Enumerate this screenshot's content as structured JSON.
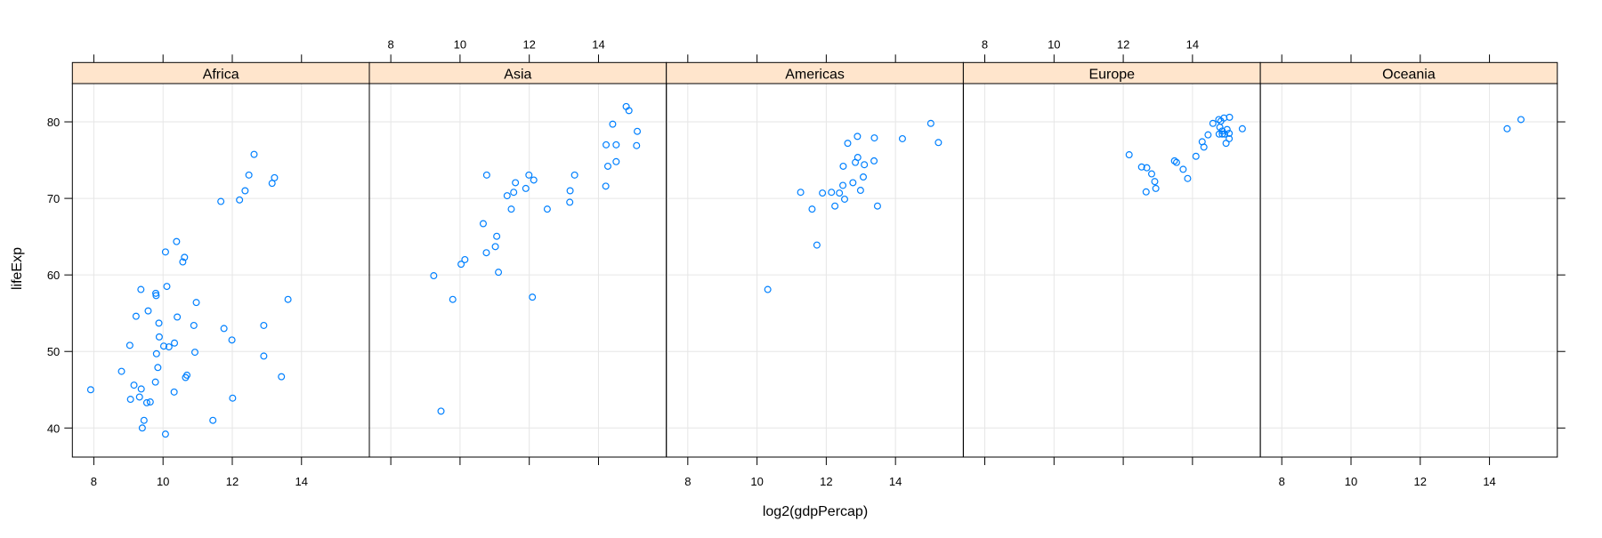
{
  "chart_data": {
    "type": "scatter",
    "layout": "1x5 conditioned panels (lattice xyplot)",
    "xlabel": "log2(gdpPercap)",
    "ylabel": "lifeExp",
    "xlim": [
      7.38,
      15.96
    ],
    "ylim": [
      36.2,
      85.0
    ],
    "x_ticks": [
      8,
      10,
      12,
      14
    ],
    "y_ticks": [
      40,
      50,
      60,
      70,
      80
    ],
    "grid": true,
    "colors": {
      "point": "#0080FF",
      "strip": "#FFE5CC",
      "grid": "#E6E6E6"
    },
    "marker": "open-circle",
    "panels": [
      {
        "name": "Africa",
        "points": [
          [
            12.63,
            75.75
          ],
          [
            12.48,
            73.05
          ],
          [
            13.22,
            72.7
          ],
          [
            13.15,
            71.97
          ],
          [
            12.37,
            71.0
          ],
          [
            11.67,
            69.6
          ],
          [
            12.21,
            69.8
          ],
          [
            10.39,
            64.36
          ],
          [
            10.07,
            63.0
          ],
          [
            10.62,
            62.3
          ],
          [
            10.57,
            61.7
          ],
          [
            10.11,
            58.5
          ],
          [
            9.36,
            58.1
          ],
          [
            9.79,
            57.6
          ],
          [
            9.8,
            57.3
          ],
          [
            10.96,
            56.4
          ],
          [
            13.61,
            56.8
          ],
          [
            9.57,
            55.3
          ],
          [
            9.22,
            54.6
          ],
          [
            10.41,
            54.5
          ],
          [
            9.88,
            53.7
          ],
          [
            10.89,
            53.4
          ],
          [
            11.76,
            53.0
          ],
          [
            12.91,
            53.4
          ],
          [
            9.89,
            51.9
          ],
          [
            11.99,
            51.5
          ],
          [
            9.04,
            50.8
          ],
          [
            10.02,
            50.7
          ],
          [
            10.17,
            50.6
          ],
          [
            10.33,
            51.1
          ],
          [
            10.92,
            49.9
          ],
          [
            9.81,
            49.7
          ],
          [
            12.91,
            49.4
          ],
          [
            8.8,
            47.4
          ],
          [
            9.85,
            47.9
          ],
          [
            10.69,
            46.9
          ],
          [
            10.65,
            46.6
          ],
          [
            13.42,
            46.7
          ],
          [
            9.78,
            46.0
          ],
          [
            7.91,
            45.0
          ],
          [
            9.16,
            45.6
          ],
          [
            9.37,
            45.1
          ],
          [
            10.32,
            44.7
          ],
          [
            9.06,
            43.75
          ],
          [
            9.32,
            44.05
          ],
          [
            9.53,
            43.3
          ],
          [
            9.63,
            43.4
          ],
          [
            12.01,
            43.9
          ],
          [
            9.45,
            41.0
          ],
          [
            11.44,
            41.0
          ],
          [
            9.4,
            40.0
          ],
          [
            10.07,
            39.2
          ]
        ]
      },
      {
        "name": "Asia",
        "points": [
          [
            10.77,
            73.05
          ],
          [
            11.99,
            73.05
          ],
          [
            12.13,
            72.4
          ],
          [
            11.6,
            72.05
          ],
          [
            11.9,
            71.3
          ],
          [
            11.55,
            70.8
          ],
          [
            11.36,
            70.35
          ],
          [
            11.48,
            68.6
          ],
          [
            12.52,
            68.6
          ],
          [
            13.17,
            69.5
          ],
          [
            13.18,
            71.0
          ],
          [
            13.31,
            73.05
          ],
          [
            10.67,
            66.7
          ],
          [
            11.06,
            65.05
          ],
          [
            11.02,
            63.7
          ],
          [
            10.76,
            62.9
          ],
          [
            10.14,
            62.0
          ],
          [
            10.03,
            61.4
          ],
          [
            11.11,
            60.35
          ],
          [
            9.24,
            59.9
          ],
          [
            9.79,
            56.8
          ],
          [
            12.09,
            57.1
          ],
          [
            14.8,
            82.0
          ],
          [
            14.88,
            81.47
          ],
          [
            14.41,
            79.7
          ],
          [
            15.12,
            78.76
          ],
          [
            14.22,
            77.0
          ],
          [
            14.51,
            77.0
          ],
          [
            15.1,
            76.9
          ],
          [
            14.51,
            74.8
          ],
          [
            14.27,
            74.2
          ],
          [
            14.21,
            71.6
          ],
          [
            9.45,
            42.2
          ]
        ]
      },
      {
        "name": "Americas",
        "points": [
          [
            15.02,
            79.8
          ],
          [
            15.24,
            77.3
          ],
          [
            14.2,
            77.8
          ],
          [
            13.39,
            77.9
          ],
          [
            12.9,
            78.1
          ],
          [
            12.62,
            77.2
          ],
          [
            12.91,
            75.35
          ],
          [
            12.84,
            74.7
          ],
          [
            13.1,
            74.4
          ],
          [
            13.38,
            74.9
          ],
          [
            12.49,
            74.2
          ],
          [
            13.07,
            72.8
          ],
          [
            12.77,
            72.05
          ],
          [
            12.48,
            71.7
          ],
          [
            12.99,
            71.05
          ],
          [
            12.38,
            70.7
          ],
          [
            12.15,
            70.8
          ],
          [
            11.89,
            70.7
          ],
          [
            11.26,
            70.8
          ],
          [
            12.53,
            69.9
          ],
          [
            12.25,
            69.0
          ],
          [
            13.48,
            69.0
          ],
          [
            11.59,
            68.6
          ],
          [
            11.73,
            63.9
          ],
          [
            10.31,
            58.1
          ]
        ]
      },
      {
        "name": "Europe",
        "points": [
          [
            12.17,
            75.7
          ],
          [
            12.53,
            74.1
          ],
          [
            12.68,
            74.0
          ],
          [
            12.82,
            73.2
          ],
          [
            12.91,
            72.2
          ],
          [
            12.94,
            71.3
          ],
          [
            12.66,
            70.85
          ],
          [
            13.48,
            74.9
          ],
          [
            13.54,
            74.7
          ],
          [
            13.73,
            73.8
          ],
          [
            13.86,
            72.6
          ],
          [
            14.1,
            75.5
          ],
          [
            14.28,
            77.4
          ],
          [
            14.33,
            76.7
          ],
          [
            14.45,
            78.3
          ],
          [
            14.59,
            79.8
          ],
          [
            14.76,
            80.3
          ],
          [
            14.82,
            80.1
          ],
          [
            14.91,
            80.5
          ],
          [
            15.07,
            80.6
          ],
          [
            14.79,
            79.3
          ],
          [
            15.0,
            79.0
          ],
          [
            14.77,
            78.4
          ],
          [
            14.86,
            78.4
          ],
          [
            14.93,
            78.4
          ],
          [
            15.06,
            78.5
          ],
          [
            15.06,
            77.8
          ],
          [
            14.97,
            77.2
          ],
          [
            15.44,
            79.1
          ],
          [
            14.86,
            78.8
          ]
        ]
      },
      {
        "name": "Oceania",
        "points": [
          [
            14.91,
            80.3
          ],
          [
            14.51,
            79.1
          ]
        ]
      }
    ]
  }
}
